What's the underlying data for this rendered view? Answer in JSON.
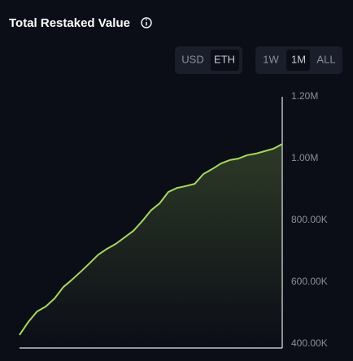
{
  "header": {
    "title": "Total Restaked Value"
  },
  "controls": {
    "currency": [
      "USD",
      "ETH"
    ],
    "range": [
      "1W",
      "1M",
      "ALL"
    ]
  },
  "chart_data": {
    "type": "area",
    "categories": [
      null,
      null,
      null,
      null,
      null,
      null,
      null,
      null,
      null,
      null,
      null,
      null,
      null,
      null,
      null,
      null,
      null,
      null,
      null,
      null,
      null,
      null,
      null,
      null,
      null,
      null,
      null,
      null,
      null,
      null,
      null
    ],
    "series": [
      {
        "color": "#a6d85e",
        "values": [
          429000,
          471000,
          505000,
          521000,
          547000,
          584000,
          608000,
          634000,
          661000,
          689000,
          708000,
          724000,
          745000,
          766000,
          797000,
          832000,
          855000,
          892000,
          905000,
          911000,
          918000,
          950000,
          966000,
          984000,
          995000,
          1000000,
          1011000,
          1016000,
          1024000,
          1032000,
          1047000
        ]
      }
    ],
    "ylim": [
      386800,
      1200000
    ],
    "yticks": [
      {
        "value": 400000,
        "label": "400.00K"
      },
      {
        "value": 600000,
        "label": "600.00K"
      },
      {
        "value": 800000,
        "label": "800.00K"
      },
      {
        "value": 1000000,
        "label": "1.00M"
      },
      {
        "value": 1200000,
        "label": "1.20M"
      }
    ],
    "grid": false
  }
}
